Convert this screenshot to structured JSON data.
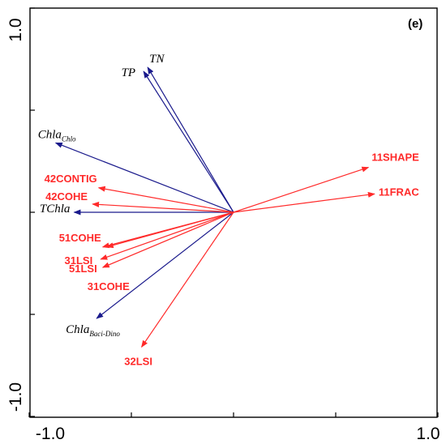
{
  "chart_data": {
    "type": "biplot",
    "panel_label": "(e)",
    "xlim": [
      -1.0,
      1.0
    ],
    "ylim": [
      -1.0,
      1.0
    ],
    "x_tick_labels": [
      "-1.0",
      "1.0"
    ],
    "y_tick_labels": [
      "1.0",
      "-1.0"
    ],
    "grid": false,
    "colors": {
      "environment": "#1a1a8c",
      "landscape": "#ff2a2a"
    },
    "environment_vectors": [
      {
        "label": "TN",
        "sub": "",
        "x": -0.42,
        "y": 0.71
      },
      {
        "label": "TP",
        "sub": "",
        "x": -0.44,
        "y": 0.69
      },
      {
        "label": "Chla",
        "sub": "Chlo",
        "x": -0.87,
        "y": 0.34
      },
      {
        "label": "TChla",
        "sub": "",
        "x": -0.78,
        "y": 0.0
      },
      {
        "label": "Chla",
        "sub": "Baci-Dino",
        "x": -0.67,
        "y": -0.52
      }
    ],
    "landscape_vectors": [
      {
        "label": "11SHAPE",
        "x": 0.66,
        "y": 0.22
      },
      {
        "label": "11FRAC",
        "x": 0.69,
        "y": 0.09
      },
      {
        "label": "42CONTIG",
        "x": -0.66,
        "y": 0.12
      },
      {
        "label": "42COHE",
        "x": -0.69,
        "y": 0.04
      },
      {
        "label": "51COHE",
        "x": -0.64,
        "y": -0.17
      },
      {
        "label": "31LSI",
        "x": -0.65,
        "y": -0.23
      },
      {
        "label": "51LSI",
        "x": -0.64,
        "y": -0.27
      },
      {
        "label": "31COHE",
        "x": -0.62,
        "y": -0.17
      },
      {
        "label": "32LSI",
        "x": -0.45,
        "y": -0.66
      }
    ]
  }
}
